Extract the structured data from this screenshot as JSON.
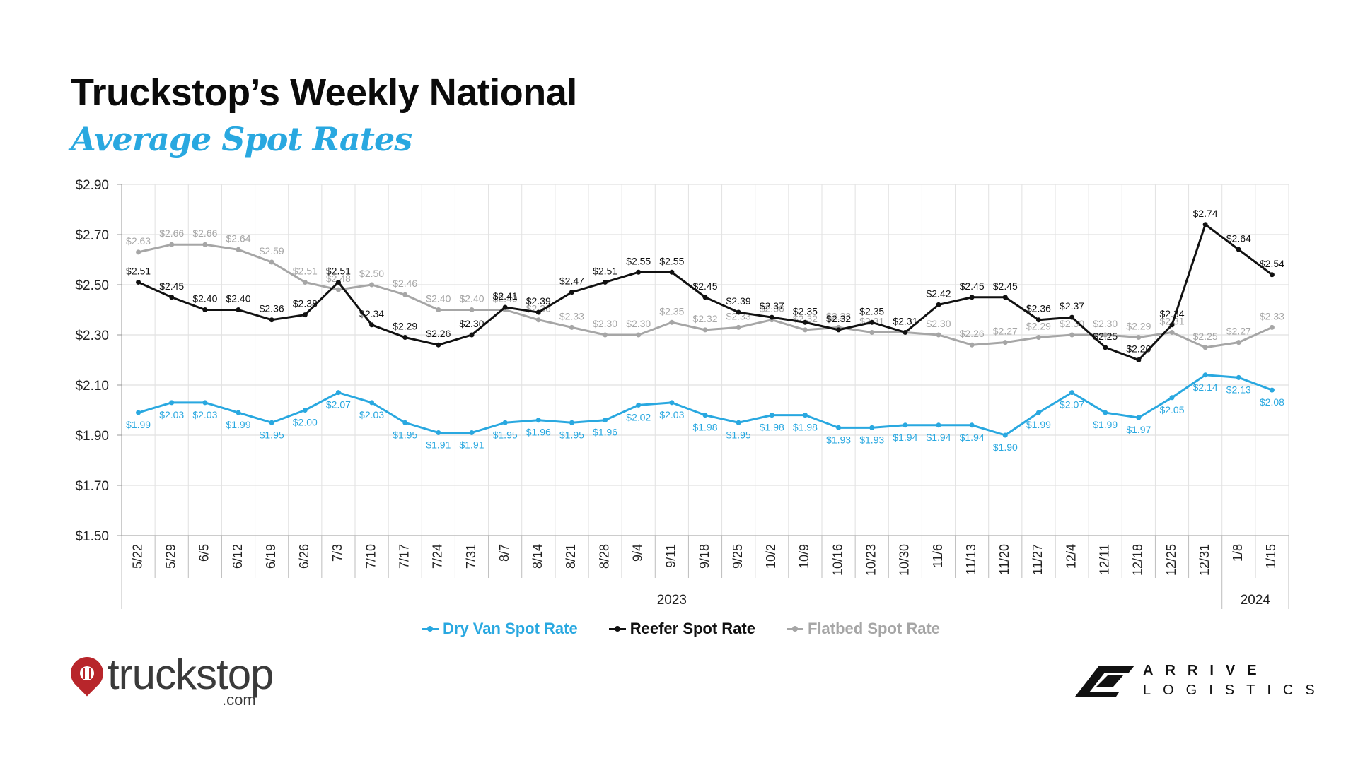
{
  "title": "Truckstop’s Weekly National",
  "subtitle": "Average Spot Rates",
  "chart_data": {
    "type": "line",
    "title": "Truckstop’s Weekly National Average Spot Rates",
    "categories": [
      "5/22",
      "5/29",
      "6/5",
      "6/12",
      "6/19",
      "6/26",
      "7/3",
      "7/10",
      "7/17",
      "7/24",
      "7/31",
      "8/7",
      "8/14",
      "8/21",
      "8/28",
      "9/4",
      "9/11",
      "9/18",
      "9/25",
      "10/2",
      "10/9",
      "10/16",
      "10/23",
      "10/30",
      "11/6",
      "11/13",
      "11/20",
      "11/27",
      "12/4",
      "12/11",
      "12/18",
      "12/25",
      "12/31",
      "1/8",
      "1/15"
    ],
    "years": [
      {
        "label": "2023",
        "from": 0,
        "to": 32
      },
      {
        "label": "2024",
        "from": 33,
        "to": 34
      }
    ],
    "ylim": [
      1.5,
      2.9
    ],
    "y_ticks": [
      "$1.50",
      "$1.70",
      "$1.90",
      "$2.10",
      "$2.30",
      "$2.50",
      "$2.70",
      "$2.90"
    ],
    "y_tick_values": [
      1.5,
      1.7,
      1.9,
      2.1,
      2.3,
      2.5,
      2.7,
      2.9
    ],
    "grid": true,
    "legend_position": "bottom",
    "series": [
      {
        "name": "Dry Van Spot Rate",
        "color": "#29a8e0",
        "label_side": "below",
        "values": [
          1.99,
          2.03,
          2.03,
          1.99,
          1.95,
          2.0,
          2.07,
          2.03,
          1.95,
          1.91,
          1.91,
          1.95,
          1.96,
          1.95,
          1.96,
          2.02,
          2.03,
          1.98,
          1.95,
          1.98,
          1.98,
          1.93,
          1.93,
          1.94,
          1.94,
          1.94,
          1.9,
          1.99,
          2.07,
          1.99,
          1.97,
          2.05,
          2.14,
          2.13,
          2.08
        ],
        "labels": [
          "$1.99",
          "$2.03",
          "$2.03",
          "$1.99",
          "$1.95",
          "$2.00",
          "$2.07",
          "$2.03",
          "$1.95",
          "$1.91",
          "$1.91",
          "$1.95",
          "$1.96",
          "$1.95",
          "$1.96",
          "$2.02",
          "$2.03",
          "$1.98",
          "$1.95",
          "$1.98",
          "$1.98",
          "$1.93",
          "$1.93",
          "$1.94",
          "$1.94",
          "$1.94",
          "$1.90",
          "$1.99",
          "$2.07",
          "$1.99",
          "$1.97",
          "$2.05",
          "$2.14",
          "$2.13",
          "$2.08"
        ]
      },
      {
        "name": "Reefer Spot Rate",
        "color": "#111111",
        "label_side": "above",
        "values": [
          2.51,
          2.45,
          2.4,
          2.4,
          2.36,
          2.38,
          2.51,
          2.34,
          2.29,
          2.26,
          2.3,
          2.41,
          2.39,
          2.47,
          2.51,
          2.55,
          2.55,
          2.45,
          2.39,
          2.37,
          2.35,
          2.32,
          2.35,
          2.31,
          2.42,
          2.45,
          2.45,
          2.36,
          2.37,
          2.25,
          2.2,
          2.34,
          2.74,
          2.64,
          2.54
        ],
        "labels": [
          "$2.51",
          "$2.45",
          "$2.40",
          "$2.40",
          "$2.36",
          "$2.38",
          "$2.51",
          "$2.34",
          "$2.29",
          "$2.26",
          "$2.30",
          "$2.41",
          "$2.39",
          "$2.47",
          "$2.51",
          "$2.55",
          "$2.55",
          "$2.45",
          "$2.39",
          "$2.37",
          "$2.35",
          "$2.32",
          "$2.35",
          "$2.31",
          "$2.42",
          "$2.45",
          "$2.45",
          "$2.36",
          "$2.37",
          "$2.25",
          "$2.20",
          "$2.34",
          "$2.74",
          "$2.64",
          "$2.54"
        ]
      },
      {
        "name": "Flatbed Spot Rate",
        "color": "#a6a6a6",
        "label_side": "above",
        "values": [
          2.63,
          2.66,
          2.66,
          2.64,
          2.59,
          2.51,
          2.48,
          2.5,
          2.46,
          2.4,
          2.4,
          2.4,
          2.36,
          2.33,
          2.3,
          2.3,
          2.35,
          2.32,
          2.33,
          2.36,
          2.32,
          2.33,
          2.31,
          2.31,
          2.3,
          2.26,
          2.27,
          2.29,
          2.3,
          2.3,
          2.29,
          2.31,
          2.25,
          2.27,
          2.33
        ],
        "labels": [
          "$2.63",
          "$2.66",
          "$2.66",
          "$2.64",
          "$2.59",
          "$2.51",
          "$2.48",
          "$2.50",
          "$2.46",
          "$2.40",
          "$2.40",
          "$2.40",
          "$2.36",
          "$2.33",
          "$2.30",
          "$2.30",
          "$2.35",
          "$2.32",
          "$2.33",
          "$2.36",
          "$2.32",
          "$2.33",
          "$2.31",
          "$2.31",
          "$2.30",
          "$2.26",
          "$2.27",
          "$2.29",
          "$2.30",
          "$2.30",
          "$2.29",
          "$2.31",
          "$2.25",
          "$2.27",
          "$2.33"
        ]
      }
    ]
  },
  "logos": {
    "left_word": "truckstop",
    "left_suffix": ".com",
    "right_word": "ARRIVE",
    "right_sub": "LOGISTICS"
  }
}
